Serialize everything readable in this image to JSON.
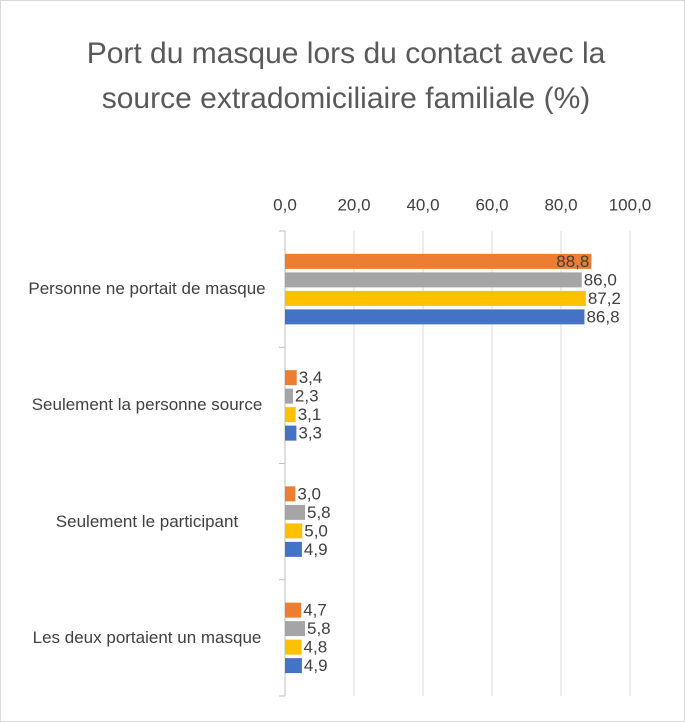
{
  "chart_data": {
    "type": "bar",
    "orientation": "horizontal",
    "title": "Port du masque lors du contact avec la source extradomiciliaire familiale (%)",
    "categories": [
      "Personne ne portait de masque",
      "Seulement la personne source",
      "Seulement le participant",
      "Les deux portaient un masque"
    ],
    "series": [
      {
        "color": "#ed7d31",
        "values": [
          88.8,
          3.4,
          3.0,
          4.7
        ],
        "value_labels": [
          "88,8",
          "3,4",
          "3,0",
          "4,7"
        ]
      },
      {
        "color": "#a5a5a5",
        "values": [
          86.0,
          2.3,
          5.8,
          5.8
        ],
        "value_labels": [
          "86,0",
          "2,3",
          "5,8",
          "5,8"
        ]
      },
      {
        "color": "#ffc000",
        "values": [
          87.2,
          3.1,
          5.0,
          4.8
        ],
        "value_labels": [
          "87,2",
          "3,1",
          "5,0",
          "4,8"
        ]
      },
      {
        "color": "#4472c4",
        "values": [
          86.8,
          3.3,
          4.9,
          4.9
        ],
        "value_labels": [
          "86,8",
          "3,3",
          "4,9",
          "4,9"
        ]
      }
    ],
    "xlim": [
      0,
      100
    ],
    "xticks": [
      {
        "value": 0,
        "label": "0,0"
      },
      {
        "value": 20,
        "label": "20,0"
      },
      {
        "value": 40,
        "label": "40,0"
      },
      {
        "value": 60,
        "label": "60,0"
      },
      {
        "value": 80,
        "label": "80,0"
      },
      {
        "value": 100,
        "label": "100,0"
      }
    ],
    "grid": true
  }
}
